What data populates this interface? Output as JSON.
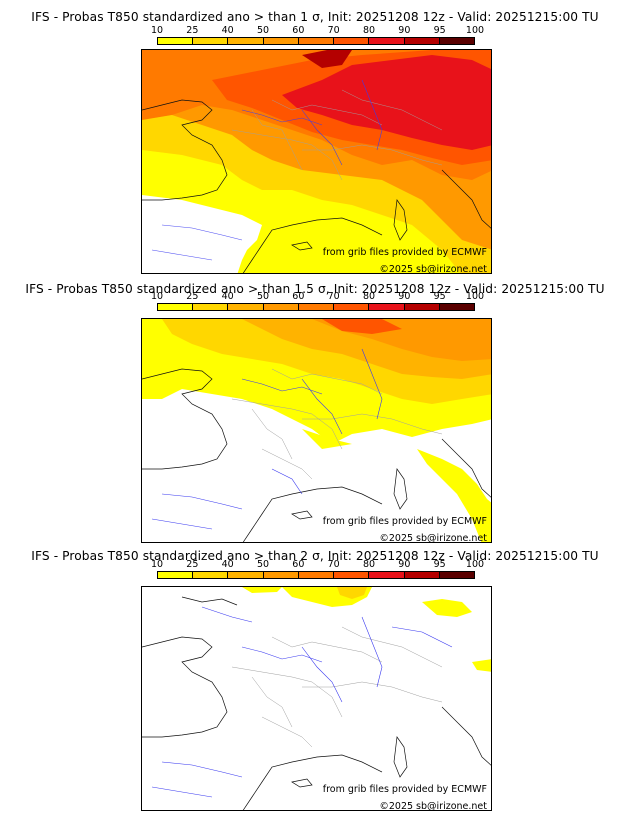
{
  "colorbar": {
    "ticks": [
      "10",
      "25",
      "40",
      "50",
      "60",
      "70",
      "80",
      "90",
      "95",
      "100"
    ],
    "colors": [
      "#ffff00",
      "#ffd700",
      "#ffb300",
      "#ff9900",
      "#ff7a00",
      "#ff5500",
      "#e8121a",
      "#b40000",
      "#5a0000"
    ]
  },
  "panels": [
    {
      "title": "IFS - Probas T850  standardized ano > than 1 σ, Init: 20251208 12z - Valid: 20251215:00 TU",
      "credit1": "from grib files provided by ECMWF",
      "credit2": "©2025 sb@irizone.net"
    },
    {
      "title": "IFS - Probas T850  standardized ano > than 1.5 σ, Init: 20251208 12z - Valid: 20251215:00 TU",
      "credit1": "from grib files provided by ECMWF",
      "credit2": "©2025 sb@irizone.net"
    },
    {
      "title": "IFS - Probas T850  standardized ano > than 2 σ, Init: 20251208 12z - Valid: 20251215:00 TU",
      "credit1": "from grib files provided by ECMWF",
      "credit2": "©2025 sb@irizone.net"
    }
  ]
}
